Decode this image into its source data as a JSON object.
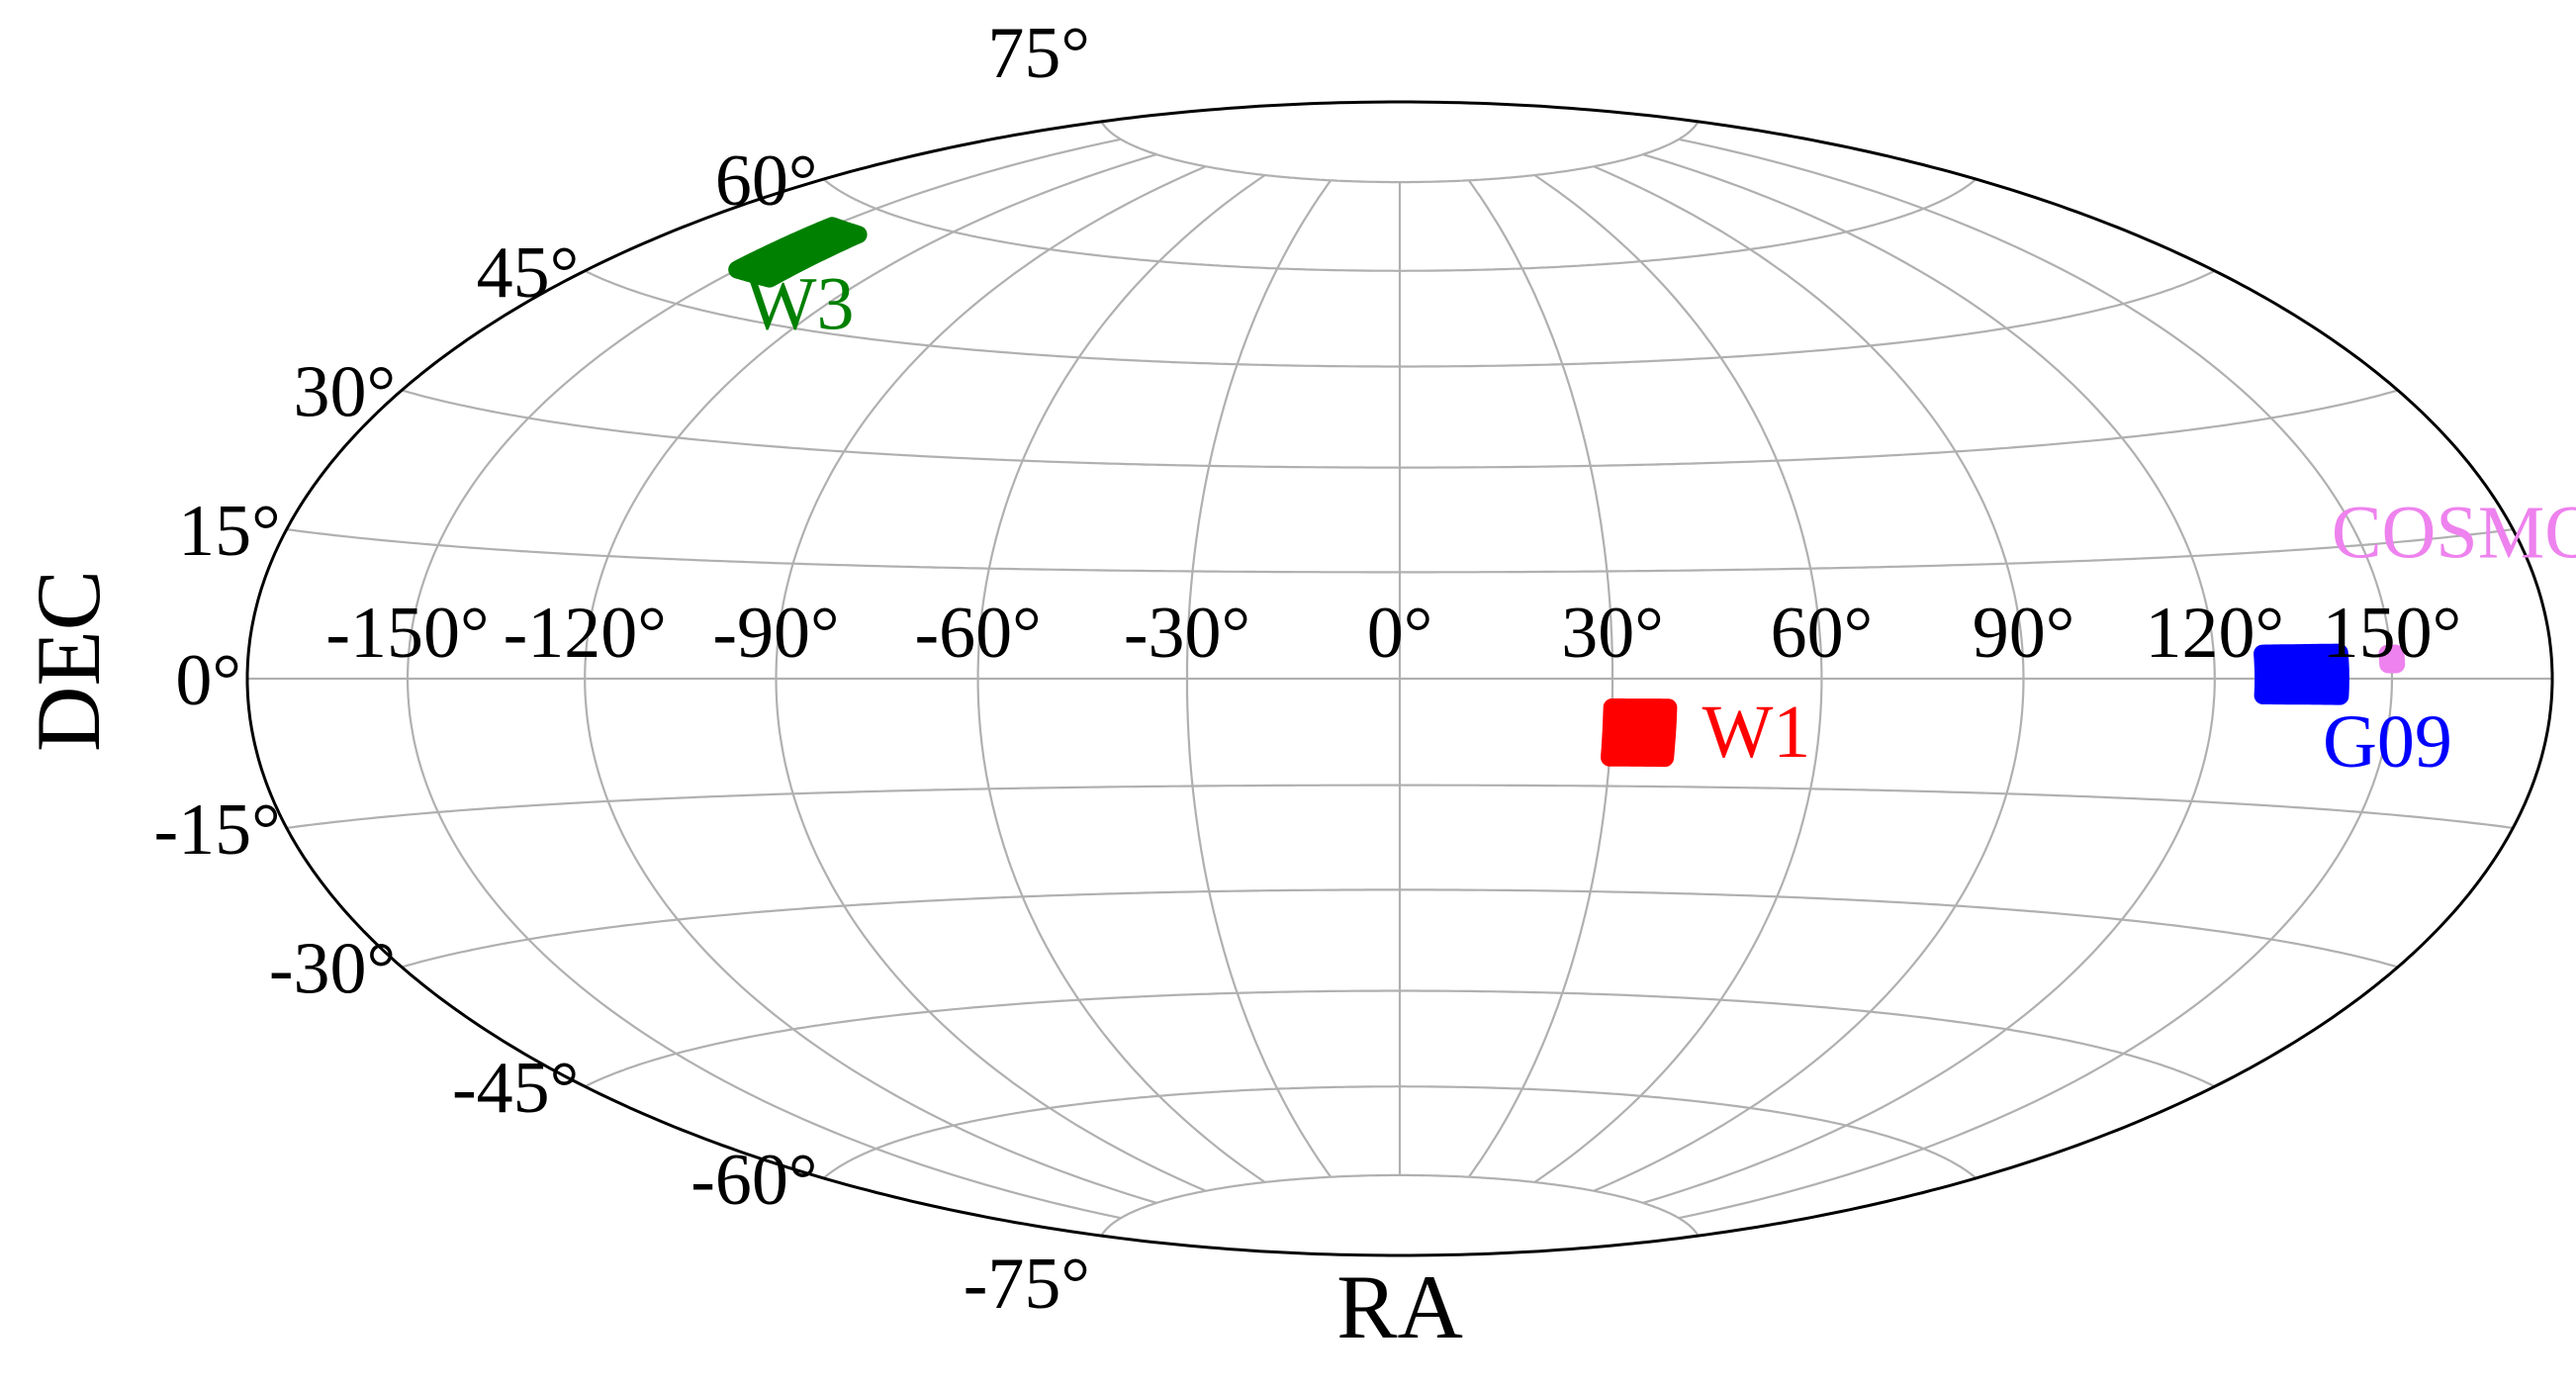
{
  "chart_data": {
    "type": "scatter",
    "projection": "aitoff-hammer",
    "xlabel": "RA",
    "ylabel": "DEC",
    "xlim": [
      -180,
      180
    ],
    "ylim": [
      -90,
      90
    ],
    "grid": true,
    "ra_ticks": [
      -150,
      -120,
      -90,
      -60,
      -30,
      0,
      30,
      60,
      90,
      120,
      150
    ],
    "ra_tick_labels": [
      "-150°",
      "-120°",
      "-90°",
      "-60°",
      "-30°",
      "0°",
      "30°",
      "60°",
      "90°",
      "120°",
      "150°"
    ],
    "dec_ticks": [
      -75,
      -60,
      -45,
      -30,
      -15,
      0,
      15,
      30,
      45,
      60,
      75
    ],
    "dec_tick_labels": [
      "-75°",
      "-60°",
      "-45°",
      "-30°",
      "-15°",
      "0°",
      "15°",
      "30°",
      "45°",
      "60°",
      "75°"
    ],
    "series": [
      {
        "name": "W1",
        "color": "#ff0000",
        "ra_range": [
          30,
          38
        ],
        "dec_range": [
          -11,
          -4
        ],
        "label_ra": 43,
        "label_dec": -7
      },
      {
        "name": "W3",
        "color": "#008000",
        "ra_range": [
          -150,
          -140
        ],
        "dec_range": [
          50,
          57
        ],
        "label_ra": -137,
        "label_dec": 47
      },
      {
        "name": "G09",
        "color": "#0000ff",
        "ra_range": [
          128,
          141
        ],
        "dec_range": [
          -2,
          3
        ],
        "label_ra": 139,
        "label_dec": -7
      },
      {
        "name": "COSMOS",
        "color": "#ee82ee",
        "ra_range": [
          149.4,
          150.8
        ],
        "dec_range": [
          1.6,
          2.8
        ],
        "label_ra": 146,
        "label_dec": 17
      }
    ]
  }
}
